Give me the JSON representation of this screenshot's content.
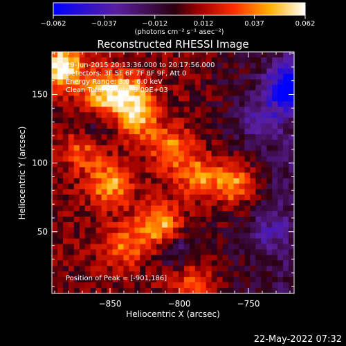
{
  "chart_data": {
    "type": "heatmap",
    "title": "Reconstructed RHESSI Image",
    "xlabel": "Heliocentric X (arcsec)",
    "ylabel": "Heliocentric Y (arcsec)",
    "xlim": [
      -892,
      -717
    ],
    "ylim": [
      5,
      181
    ],
    "x_ticks": [
      -850,
      -800,
      -750
    ],
    "x_tick_labels": [
      "−850",
      "−800",
      "−750"
    ],
    "y_ticks": [
      50,
      100,
      150
    ],
    "y_tick_labels": [
      "50",
      "100",
      "150"
    ],
    "colorbar": {
      "range": [
        -0.062,
        0.062
      ],
      "ticks": [
        -0.062,
        -0.037,
        -0.012,
        0.012,
        0.037,
        0.062
      ],
      "tick_labels": [
        "−0.062",
        "−0.037",
        "−0.012",
        "0.012",
        "0.037",
        "0.062"
      ],
      "units": "(photons cm⁻² s⁻¹ asec⁻²)",
      "colors": [
        "#0000ff",
        "#5a1fa0",
        "#3a0000",
        "#d01000",
        "#ff6a00",
        "#ffe000",
        "#ffffff"
      ]
    },
    "info_lines": [
      "29-Jun-2015 20:13:36.000 to 20:17:56.000",
      "Detectors: 3F 5F 6F 7F 8F 9F, Att 0",
      "Energy Range: 3.0 - 6.0 keV",
      "Clean     Total counts: 9.09E+03"
    ],
    "peak_label": "Position of Peak = [-901,186]",
    "peak_position": [
      -901,
      186
    ],
    "bright_regions": [
      {
        "x": -885,
        "y": 170,
        "level": 0.062
      },
      {
        "x": -855,
        "y": 150,
        "level": 0.045
      },
      {
        "x": -835,
        "y": 150,
        "level": 0.04
      },
      {
        "x": -850,
        "y": 85,
        "level": 0.04
      },
      {
        "x": -830,
        "y": 130,
        "level": 0.035
      },
      {
        "x": -805,
        "y": 110,
        "level": 0.035
      },
      {
        "x": -785,
        "y": 90,
        "level": 0.035
      },
      {
        "x": -760,
        "y": 85,
        "level": 0.045
      },
      {
        "x": -815,
        "y": 55,
        "level": 0.045
      },
      {
        "x": -840,
        "y": 40,
        "level": 0.03
      },
      {
        "x": -790,
        "y": 15,
        "level": 0.03
      },
      {
        "x": -870,
        "y": 110,
        "level": 0.03
      }
    ],
    "dark_regions": [
      {
        "x": -720,
        "y": 155,
        "level": -0.062
      },
      {
        "x": -740,
        "y": 130,
        "level": -0.025
      },
      {
        "x": -860,
        "y": 125,
        "level": -0.02
      },
      {
        "x": -800,
        "y": 35,
        "level": -0.025
      },
      {
        "x": -735,
        "y": 50,
        "level": -0.02
      }
    ]
  },
  "timestamp": "22-May-2022 07:32"
}
